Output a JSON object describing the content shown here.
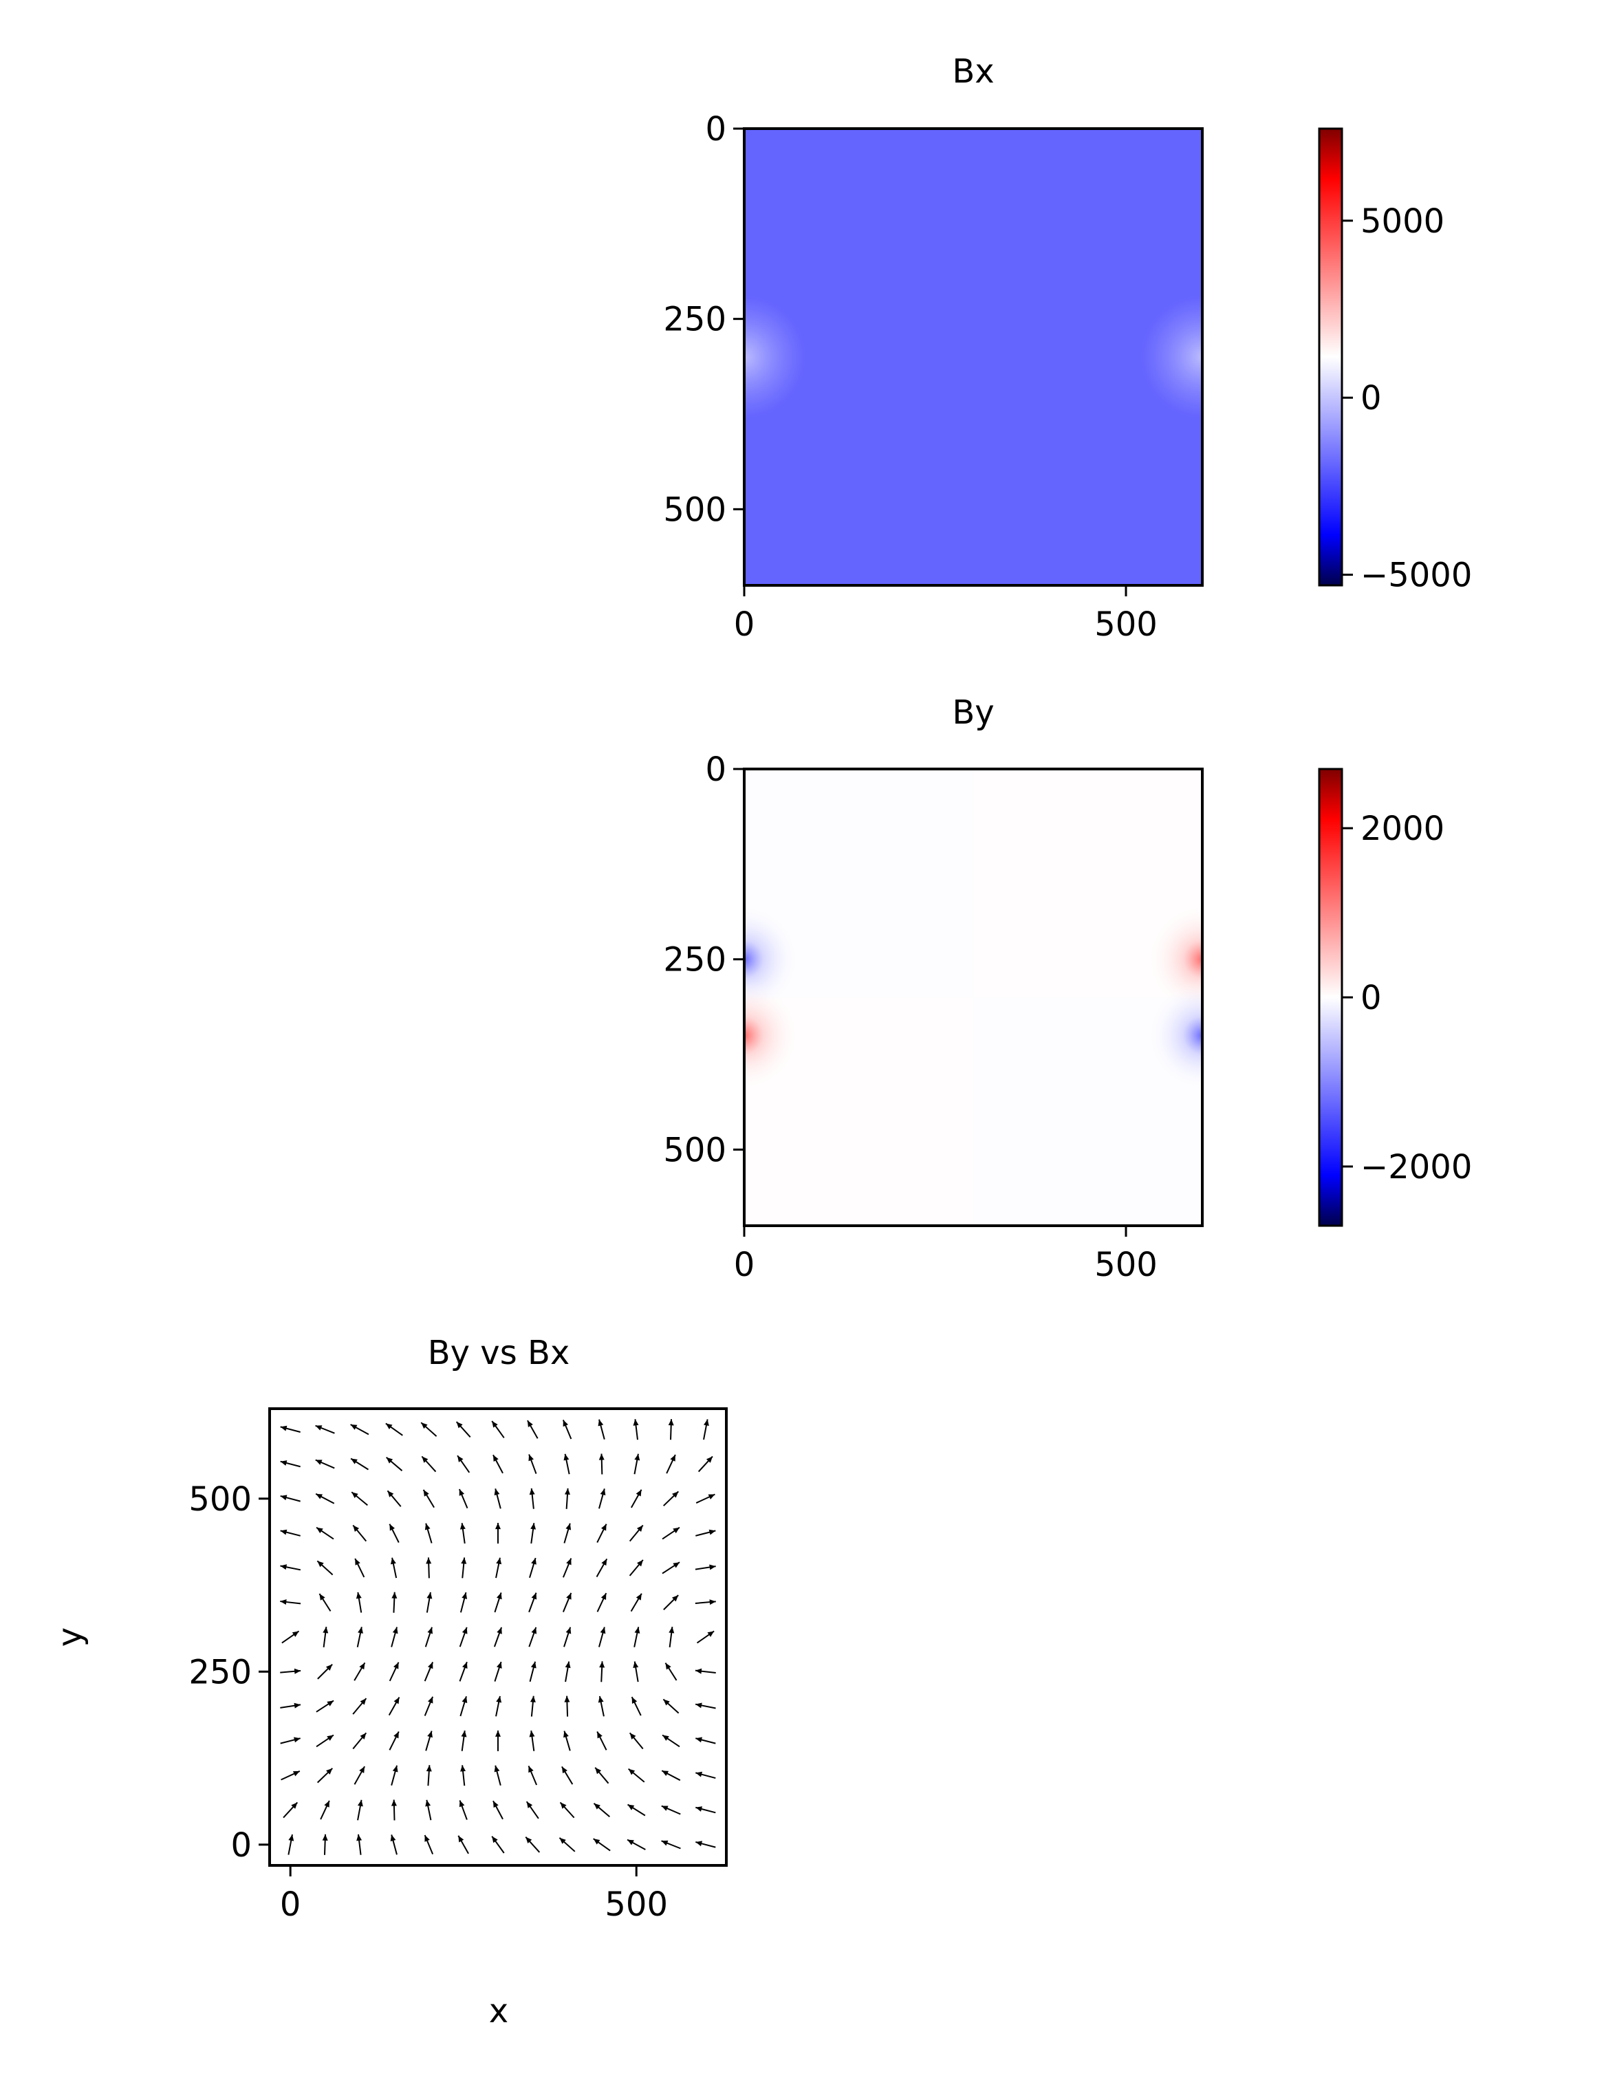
{
  "chart_data": [
    {
      "type": "heatmap",
      "title": "Bx",
      "xlabel": "",
      "ylabel": "",
      "x_ticks": [
        0,
        500
      ],
      "y_ticks": [
        0,
        250,
        500
      ],
      "xlim": [
        0,
        600
      ],
      "ylim": [
        600,
        0
      ],
      "uniform_value": -1900,
      "field_note_features": [
        {
          "x": 0,
          "y": 300,
          "value": -1200
        },
        {
          "x": 600,
          "y": 300,
          "value": -1200
        }
      ],
      "colormap": "seismic",
      "colorbar": {
        "vmin": -5300,
        "vmax": 7600,
        "ticks": [
          5000,
          0,
          -5000
        ],
        "tick_labels": [
          "5000",
          "0",
          "−5000"
        ]
      }
    },
    {
      "type": "heatmap",
      "title": "By",
      "xlabel": "",
      "ylabel": "",
      "x_ticks": [
        0,
        500
      ],
      "y_ticks": [
        0,
        250,
        500
      ],
      "xlim": [
        0,
        600
      ],
      "ylim": [
        600,
        0
      ],
      "uniform_value": 0,
      "features": [
        {
          "x": 0,
          "y": 250,
          "value": -2000
        },
        {
          "x": 0,
          "y": 350,
          "value": 2000
        },
        {
          "x": 600,
          "y": 250,
          "value": 2000
        },
        {
          "x": 600,
          "y": 350,
          "value": -2000
        }
      ],
      "colormap": "seismic",
      "colorbar": {
        "vmin": -2700,
        "vmax": 2700,
        "ticks": [
          2000,
          0,
          -2000
        ],
        "tick_labels": [
          "2000",
          "0",
          "−2000"
        ]
      }
    },
    {
      "type": "quiver",
      "title": "By vs Bx",
      "xlabel": "x",
      "ylabel": "y",
      "x_ticks": [
        0,
        500
      ],
      "y_ticks": [
        0,
        250,
        500
      ],
      "xlim": [
        -30,
        630
      ],
      "ylim": [
        -30,
        630
      ],
      "grid": {
        "x_start": 0,
        "x_step": 50,
        "nx": 13,
        "y_start": 0,
        "y_step": 25,
        "ny": 13
      },
      "arrow_color": "#000000"
    }
  ],
  "colors": {
    "cmap_stops": [
      "#00004c",
      "#0000ff",
      "#ffffff",
      "#ff0000",
      "#800000"
    ]
  }
}
